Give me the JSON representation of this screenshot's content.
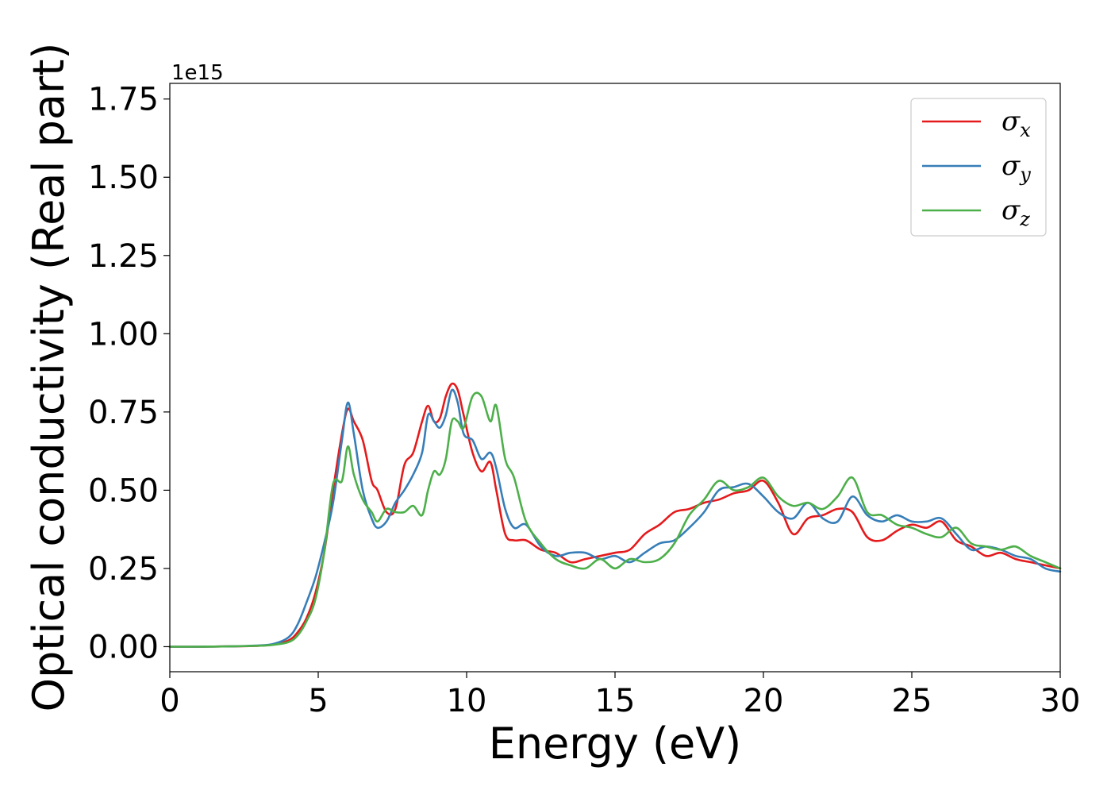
{
  "chart_data": {
    "type": "line",
    "xlabel": "Energy (eV)",
    "ylabel": "Optical conductivity (Real part)",
    "y_offset_text": "1e15",
    "xlim": [
      0,
      30
    ],
    "ylim": [
      -0.08,
      1.8
    ],
    "x_ticks": [
      0,
      5,
      10,
      15,
      20,
      25,
      30
    ],
    "x_tick_labels": [
      "0",
      "5",
      "10",
      "15",
      "20",
      "25",
      "30"
    ],
    "y_ticks": [
      0,
      0.25,
      0.5,
      0.75,
      1.0,
      1.25,
      1.5,
      1.75
    ],
    "y_tick_labels": [
      "0.00",
      "0.25",
      "0.50",
      "0.75",
      "1.00",
      "1.25",
      "1.50",
      "1.75"
    ],
    "grid": false,
    "legend_position": "top-right",
    "series": [
      {
        "name": "σx",
        "symbol": "σ",
        "subscript": "x",
        "color": "#e41a1c",
        "x": [
          0,
          1,
          2,
          3,
          3.5,
          4,
          4.3,
          4.6,
          4.9,
          5.2,
          5.5,
          5.8,
          6.0,
          6.2,
          6.5,
          6.8,
          7.0,
          7.3,
          7.6,
          7.9,
          8.2,
          8.5,
          8.7,
          8.9,
          9.1,
          9.3,
          9.5,
          9.7,
          9.9,
          10.2,
          10.5,
          10.8,
          11.0,
          11.3,
          11.6,
          12.0,
          12.5,
          13.0,
          13.5,
          14.0,
          14.5,
          15.0,
          15.5,
          16.0,
          16.5,
          17.0,
          17.5,
          18.0,
          18.5,
          19.0,
          19.5,
          20.0,
          20.5,
          21.0,
          21.5,
          22.0,
          22.5,
          23.0,
          23.5,
          24.0,
          24.5,
          25.0,
          25.5,
          26.0,
          26.5,
          27.0,
          27.5,
          28.0,
          28.5,
          29.0,
          29.5,
          30.0
        ],
        "y": [
          0,
          0,
          0.001,
          0.003,
          0.007,
          0.02,
          0.045,
          0.09,
          0.17,
          0.3,
          0.5,
          0.68,
          0.76,
          0.72,
          0.66,
          0.53,
          0.5,
          0.43,
          0.44,
          0.58,
          0.62,
          0.72,
          0.77,
          0.72,
          0.73,
          0.8,
          0.84,
          0.82,
          0.74,
          0.62,
          0.56,
          0.59,
          0.5,
          0.36,
          0.34,
          0.34,
          0.31,
          0.3,
          0.27,
          0.28,
          0.29,
          0.3,
          0.31,
          0.36,
          0.39,
          0.43,
          0.44,
          0.46,
          0.47,
          0.49,
          0.5,
          0.53,
          0.46,
          0.36,
          0.41,
          0.42,
          0.44,
          0.43,
          0.35,
          0.34,
          0.37,
          0.39,
          0.38,
          0.4,
          0.34,
          0.32,
          0.29,
          0.3,
          0.28,
          0.27,
          0.26,
          0.25
        ]
      },
      {
        "name": "σy",
        "symbol": "σ",
        "subscript": "y",
        "color": "#377eb8",
        "x": [
          0,
          1,
          2,
          3,
          3.5,
          4,
          4.3,
          4.6,
          4.9,
          5.2,
          5.5,
          5.8,
          6.0,
          6.2,
          6.5,
          6.8,
          7.0,
          7.3,
          7.6,
          7.9,
          8.2,
          8.5,
          8.7,
          8.9,
          9.1,
          9.3,
          9.5,
          9.7,
          9.9,
          10.2,
          10.5,
          10.8,
          11.0,
          11.3,
          11.6,
          12.0,
          12.5,
          13.0,
          13.5,
          14.0,
          14.5,
          15.0,
          15.5,
          16.0,
          16.5,
          17.0,
          17.5,
          18.0,
          18.5,
          19.0,
          19.5,
          20.0,
          20.5,
          21.0,
          21.5,
          22.0,
          22.5,
          23.0,
          23.5,
          24.0,
          24.5,
          25.0,
          25.5,
          26.0,
          26.5,
          27.0,
          27.5,
          28.0,
          28.5,
          29.0,
          29.5,
          30.0
        ],
        "y": [
          0,
          0,
          0.001,
          0.004,
          0.009,
          0.03,
          0.07,
          0.14,
          0.22,
          0.33,
          0.46,
          0.66,
          0.78,
          0.68,
          0.5,
          0.41,
          0.38,
          0.4,
          0.46,
          0.5,
          0.55,
          0.62,
          0.74,
          0.72,
          0.7,
          0.74,
          0.82,
          0.78,
          0.68,
          0.66,
          0.6,
          0.62,
          0.57,
          0.44,
          0.38,
          0.39,
          0.32,
          0.29,
          0.3,
          0.3,
          0.28,
          0.29,
          0.27,
          0.3,
          0.33,
          0.34,
          0.38,
          0.43,
          0.5,
          0.51,
          0.52,
          0.48,
          0.43,
          0.41,
          0.46,
          0.41,
          0.4,
          0.48,
          0.42,
          0.4,
          0.42,
          0.4,
          0.4,
          0.41,
          0.36,
          0.31,
          0.32,
          0.31,
          0.29,
          0.28,
          0.25,
          0.24
        ]
      },
      {
        "name": "σz",
        "symbol": "σ",
        "subscript": "z",
        "color": "#4daf4a",
        "x": [
          0,
          1,
          2,
          3,
          3.5,
          4,
          4.3,
          4.6,
          4.9,
          5.2,
          5.5,
          5.8,
          6.0,
          6.2,
          6.5,
          6.8,
          7.0,
          7.3,
          7.6,
          7.9,
          8.2,
          8.5,
          8.7,
          8.9,
          9.1,
          9.3,
          9.5,
          9.7,
          9.9,
          10.2,
          10.5,
          10.8,
          11.0,
          11.3,
          11.6,
          12.0,
          12.5,
          13.0,
          13.5,
          14.0,
          14.5,
          15.0,
          15.5,
          16.0,
          16.5,
          17.0,
          17.5,
          18.0,
          18.5,
          19.0,
          19.5,
          20.0,
          20.5,
          21.0,
          21.5,
          22.0,
          22.5,
          23.0,
          23.5,
          24.0,
          24.5,
          25.0,
          25.5,
          26.0,
          26.5,
          27.0,
          27.5,
          28.0,
          28.5,
          29.0,
          29.5,
          30.0
        ],
        "y": [
          0,
          0,
          0.001,
          0.003,
          0.006,
          0.015,
          0.035,
          0.08,
          0.15,
          0.3,
          0.52,
          0.53,
          0.64,
          0.55,
          0.47,
          0.43,
          0.4,
          0.44,
          0.43,
          0.43,
          0.45,
          0.42,
          0.5,
          0.56,
          0.55,
          0.6,
          0.72,
          0.72,
          0.7,
          0.8,
          0.8,
          0.72,
          0.77,
          0.6,
          0.54,
          0.4,
          0.33,
          0.28,
          0.26,
          0.25,
          0.28,
          0.25,
          0.28,
          0.27,
          0.28,
          0.33,
          0.42,
          0.47,
          0.53,
          0.5,
          0.51,
          0.54,
          0.48,
          0.45,
          0.46,
          0.44,
          0.48,
          0.54,
          0.43,
          0.42,
          0.39,
          0.38,
          0.36,
          0.35,
          0.38,
          0.33,
          0.32,
          0.31,
          0.32,
          0.29,
          0.27,
          0.25
        ]
      }
    ]
  }
}
